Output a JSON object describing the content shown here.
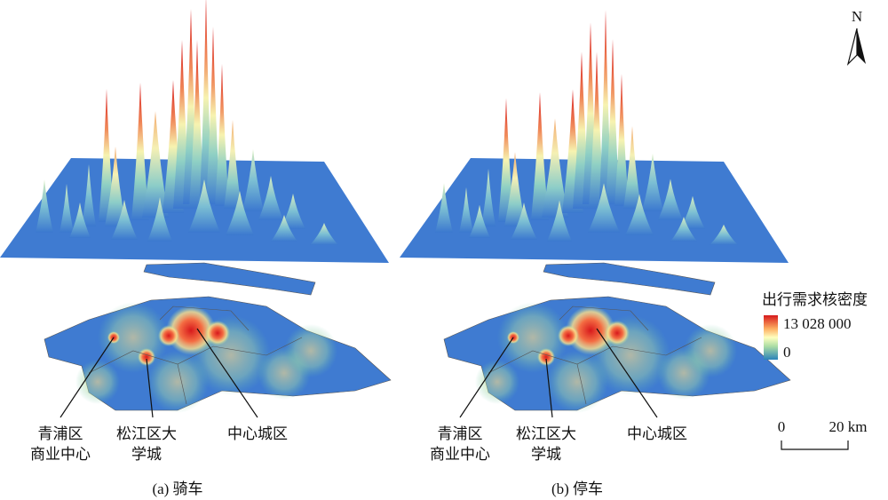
{
  "north": "N",
  "legend": {
    "title": "出行需求核密度",
    "max": "13 028 000",
    "min": "0"
  },
  "scale": {
    "start": "0",
    "end": "20 km"
  },
  "panels": [
    {
      "caption": "(a) 骑车",
      "labels": [
        [
          "青浦区",
          "商业中心"
        ],
        [
          "松江区大",
          "学城"
        ],
        [
          "中心城区"
        ]
      ]
    },
    {
      "caption": "(b) 停车",
      "labels": [
        [
          "青浦区",
          "商业中心"
        ],
        [
          "松江区大",
          "学城"
        ],
        [
          "中心城区"
        ]
      ]
    }
  ]
}
